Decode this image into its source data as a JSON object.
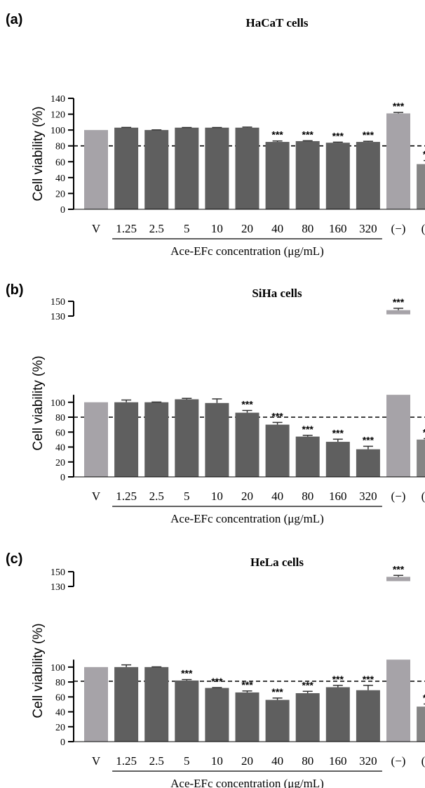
{
  "x_title": "Ace-EFc concentration (μg/mL)",
  "y_label": "Cell viability (%)",
  "sig_label": "***",
  "colors": {
    "vehicle": "#a6a3a8",
    "treatment": "#5f5f5f",
    "negative": "#a6a3a8",
    "positive": "#858585",
    "reference_line": "#000000",
    "error_bar": "#333333"
  },
  "chart_data": [
    {
      "type": "bar",
      "panel_label": "(a)",
      "title": "HaCaT cells",
      "xlabel": "Ace-EFc concentration (μg/mL)",
      "ylabel": "Cell viability (%)",
      "categories": [
        "V",
        "1.25",
        "2.5",
        "5",
        "10",
        "20",
        "40",
        "80",
        "160",
        "320",
        "(−)",
        "(+)"
      ],
      "values": [
        100,
        103,
        100,
        103,
        103,
        103,
        85,
        86,
        84,
        85,
        121,
        57
      ],
      "errors": [
        0,
        0.3,
        0.2,
        0.2,
        0.2,
        0.7,
        1.2,
        0.5,
        0.7,
        0.8,
        1.2,
        4.5
      ],
      "significant": [
        false,
        false,
        false,
        false,
        false,
        false,
        true,
        true,
        true,
        true,
        true,
        true
      ],
      "ylim": [
        0,
        140
      ],
      "yticks": [
        0,
        20,
        40,
        60,
        80,
        100,
        120,
        140
      ],
      "reference_line": 80,
      "axis_break": false
    },
    {
      "type": "bar",
      "panel_label": "(b)",
      "title": "SiHa cells",
      "xlabel": "Ace-EFc concentration (μg/mL)",
      "ylabel": "Cell viability (%)",
      "categories": [
        "V",
        "1.25",
        "2.5",
        "5",
        "10",
        "20",
        "40",
        "80",
        "160",
        "320",
        "(−)",
        "(+)"
      ],
      "values": [
        100,
        100,
        100,
        104,
        99,
        86,
        70,
        54,
        47,
        37,
        138,
        50
      ],
      "errors": [
        0,
        3,
        0.3,
        1.2,
        5.5,
        3,
        3,
        1.7,
        3.5,
        4,
        2.5,
        1.3
      ],
      "significant": [
        false,
        false,
        false,
        false,
        false,
        true,
        true,
        true,
        true,
        true,
        true,
        true
      ],
      "ylim": [
        0,
        150
      ],
      "yticks": [
        0,
        20,
        40,
        60,
        80,
        100,
        130,
        150
      ],
      "reference_line": 80,
      "axis_break": true
    },
    {
      "type": "bar",
      "panel_label": "(c)",
      "title": "HeLa cells",
      "xlabel": "Ace-EFc concentration (μg/mL)",
      "ylabel": "Cell viability (%)",
      "categories": [
        "V",
        "1.25",
        "2.5",
        "5",
        "10",
        "20",
        "40",
        "80",
        "160",
        "320",
        "(−)",
        "(+)"
      ],
      "values": [
        100,
        100,
        100,
        82,
        72,
        66,
        56,
        65,
        73,
        69,
        143,
        47
      ],
      "errors": [
        0,
        3,
        0.3,
        1.3,
        0.5,
        2,
        2.5,
        2.5,
        2.5,
        6.5,
        2,
        3.5
      ],
      "significant": [
        false,
        false,
        false,
        true,
        true,
        true,
        true,
        true,
        true,
        true,
        true,
        true
      ],
      "ylim": [
        0,
        150
      ],
      "yticks": [
        0,
        20,
        40,
        60,
        80,
        100,
        130,
        150
      ],
      "reference_line": 81,
      "axis_break": true
    }
  ]
}
